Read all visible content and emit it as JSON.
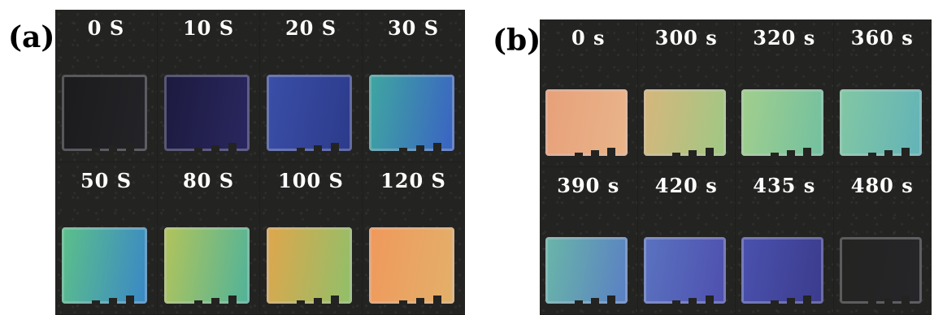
{
  "panel_a": {
    "label": "(a)",
    "frames": [
      {
        "time": "0 S",
        "colors": [
          "#1b1b1d",
          "#242428"
        ]
      },
      {
        "time": "10 S",
        "colors": [
          "#1c1a3e",
          "#2a2760"
        ]
      },
      {
        "time": "20 S",
        "colors": [
          "#3a4fa8",
          "#2c3a8a"
        ]
      },
      {
        "time": "30 S",
        "colors": [
          "#3fa7a0",
          "#3a62c4"
        ]
      },
      {
        "time": "50 S",
        "colors": [
          "#5cc089",
          "#3a87c7"
        ]
      },
      {
        "time": "80 S",
        "colors": [
          "#b3c45a",
          "#4fb39a"
        ]
      },
      {
        "time": "100 S",
        "colors": [
          "#e0a64c",
          "#8fc06a"
        ]
      },
      {
        "time": "120 S",
        "colors": [
          "#f0995c",
          "#e3b06a"
        ]
      }
    ]
  },
  "panel_b": {
    "label": "(b)",
    "frames": [
      {
        "time": "0 s",
        "colors": [
          "#e7a07a",
          "#e9b58a"
        ]
      },
      {
        "time": "300 s",
        "colors": [
          "#d7b67c",
          "#9fc884"
        ]
      },
      {
        "time": "320 s",
        "colors": [
          "#a2cf8d",
          "#72c0a0"
        ]
      },
      {
        "time": "360 s",
        "colors": [
          "#82c7a3",
          "#63b3b8"
        ]
      },
      {
        "time": "390 s",
        "colors": [
          "#6ab6a8",
          "#5a7fc4"
        ]
      },
      {
        "time": "420 s",
        "colors": [
          "#5a73c0",
          "#4e4fae"
        ]
      },
      {
        "time": "435 s",
        "colors": [
          "#4a52ae",
          "#3b3b8c"
        ]
      },
      {
        "time": "480 s",
        "colors": [
          "#232321",
          "#26262a"
        ]
      }
    ]
  }
}
